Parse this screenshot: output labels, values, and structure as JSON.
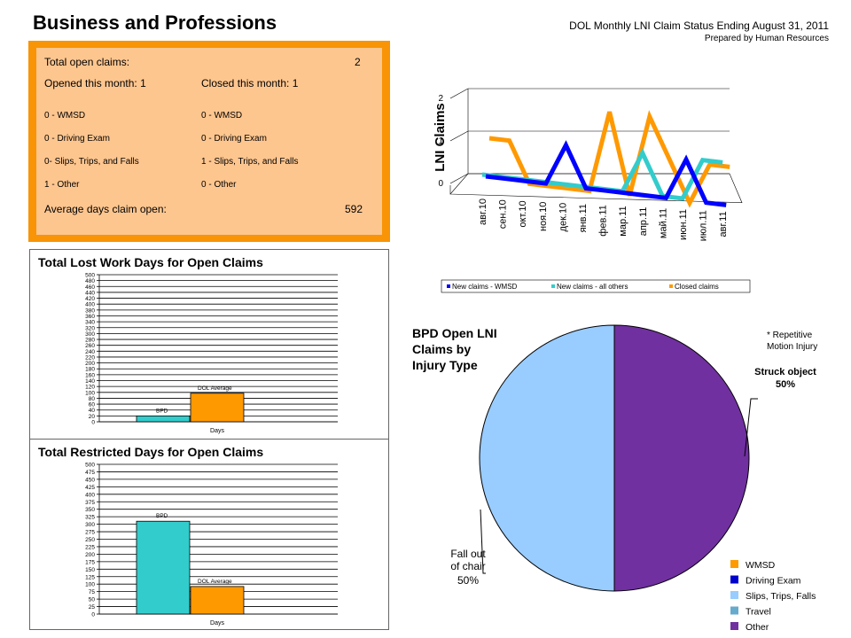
{
  "page_title": "Business and Professions",
  "report_title": "DOL Monthly LNI Claim Status Ending August 31, 2011",
  "report_subtitle": "Prepared by Human Resources",
  "summary": {
    "total_open_label": "Total open claims:",
    "total_open_value": "2",
    "opened_label": "Opened this month: 1",
    "closed_label": "Closed this month: 1",
    "opened_items": [
      "0 - WMSD",
      "0 -  Driving Exam",
      "0- Slips, Trips, and Falls",
      "1 -  Other"
    ],
    "closed_items": [
      "0 - WMSD",
      "0 - Driving Exam",
      "1 - Slips, Trips, and Falls",
      "0 - Other"
    ],
    "avg_days_label": "Average days claim open:",
    "avg_days_value": "592"
  },
  "colors": {
    "wmsd": "#0000ff",
    "all_others": "#33cccc",
    "closed": "#ff9900",
    "bpd_bar": "#33cccc",
    "dol_bar": "#ff9900",
    "pie_struck": "#7030a0",
    "pie_fall": "#99ccff",
    "summary_border": "#f89406",
    "summary_fill": "#fec68f"
  },
  "chart_data": [
    {
      "id": "lni-claims",
      "type": "line",
      "ylabel": "LNI Claims",
      "categories": [
        "авг.10",
        "сен.10",
        "окт.10",
        "ноя.10",
        "дек.10",
        "янв.11",
        "фев.11",
        "мар.11",
        "апр.11",
        "май.11",
        "июн.11",
        "июл.11",
        "авг.11"
      ],
      "series": [
        {
          "name": "New claims - WMSD",
          "values": [
            0,
            0,
            0,
            0,
            1,
            0,
            0,
            0,
            0,
            0,
            1,
            0,
            0
          ]
        },
        {
          "name": "New claims - all others",
          "values": [
            0,
            0,
            0,
            0,
            0,
            0,
            0,
            0,
            1,
            0,
            0,
            1,
            1
          ]
        },
        {
          "name": "Closed claims",
          "values": [
            1,
            1,
            0,
            0,
            0,
            0,
            2,
            0,
            2,
            1,
            0,
            1,
            1
          ]
        }
      ],
      "yticks": [
        "0",
        "1",
        "2"
      ],
      "ylim": [
        0,
        2
      ],
      "legend_position": "bottom",
      "grid": true
    },
    {
      "id": "lost-work-days",
      "type": "bar",
      "title": "Total Lost Work Days for Open Claims",
      "xlabel": "Days",
      "categories": [
        "BPD",
        "DOL Average"
      ],
      "values": [
        20,
        97
      ],
      "ylim": [
        0,
        500
      ],
      "yticks": [
        "0",
        "20",
        "40",
        "60",
        "80",
        "100",
        "120",
        "140",
        "160",
        "180",
        "200",
        "220",
        "240",
        "260",
        "280",
        "300",
        "320",
        "340",
        "360",
        "380",
        "400",
        "420",
        "440",
        "460",
        "480",
        "500"
      ],
      "grid": true
    },
    {
      "id": "restricted-days",
      "type": "bar",
      "title": "Total Restricted Days for Open Claims",
      "xlabel": "Days",
      "categories": [
        "BPD",
        "DOL Average"
      ],
      "values": [
        310,
        92
      ],
      "ylim": [
        0,
        500
      ],
      "yticks": [
        "0",
        "25",
        "50",
        "75",
        "100",
        "125",
        "150",
        "175",
        "200",
        "225",
        "250",
        "275",
        "300",
        "325",
        "350",
        "375",
        "400",
        "425",
        "450",
        "475",
        "500"
      ],
      "grid": true
    },
    {
      "id": "injury-type-pie",
      "type": "pie",
      "title": "BPD Open LNI Claims by Injury Type",
      "slices": [
        {
          "name": "Struck object",
          "label": "50%",
          "value": 50
        },
        {
          "name": "Fall  out of chair",
          "label": "50%",
          "value": 50
        }
      ],
      "note": "* Repetitive Motion Injury",
      "legend": [
        "WMSD",
        "Driving Exam",
        "Slips, Trips, Falls",
        "Travel",
        "Other"
      ],
      "legend_position": "bottom-right"
    }
  ]
}
